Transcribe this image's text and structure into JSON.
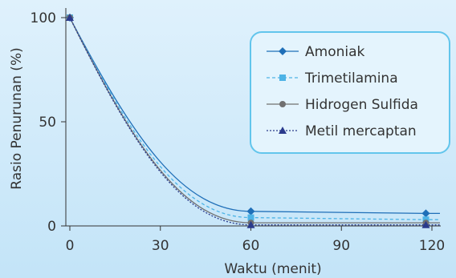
{
  "chart_data": {
    "type": "line",
    "xlabel": "Waktu (menit)",
    "ylabel": "Rasio Penurunan (%)",
    "xlim": [
      0,
      120
    ],
    "ylim": [
      0,
      100
    ],
    "xticks": [
      0,
      30,
      60,
      90,
      120
    ],
    "yticks": [
      0,
      50,
      100
    ],
    "grid": false,
    "legend_position": "top-right",
    "series": [
      {
        "name": "Amoniak",
        "x": [
          0,
          60,
          118
        ],
        "y": [
          100,
          7,
          6
        ],
        "color": "#1f6fb8",
        "marker": "diamond",
        "dash": "solid"
      },
      {
        "name": "Trimetilamina",
        "x": [
          0,
          60,
          118
        ],
        "y": [
          100,
          4,
          3
        ],
        "color": "#4db3e6",
        "marker": "square",
        "dash": "dashed"
      },
      {
        "name": "Hidrogen Sulfida",
        "x": [
          0,
          60,
          118
        ],
        "y": [
          100,
          1.5,
          1.5
        ],
        "color": "#707070",
        "marker": "circle",
        "dash": "solid"
      },
      {
        "name": "Metil mercaptan",
        "x": [
          0,
          60,
          118
        ],
        "y": [
          100,
          0.5,
          0.5
        ],
        "color": "#2a3a8c",
        "marker": "triangle",
        "dash": "dotted"
      }
    ]
  }
}
